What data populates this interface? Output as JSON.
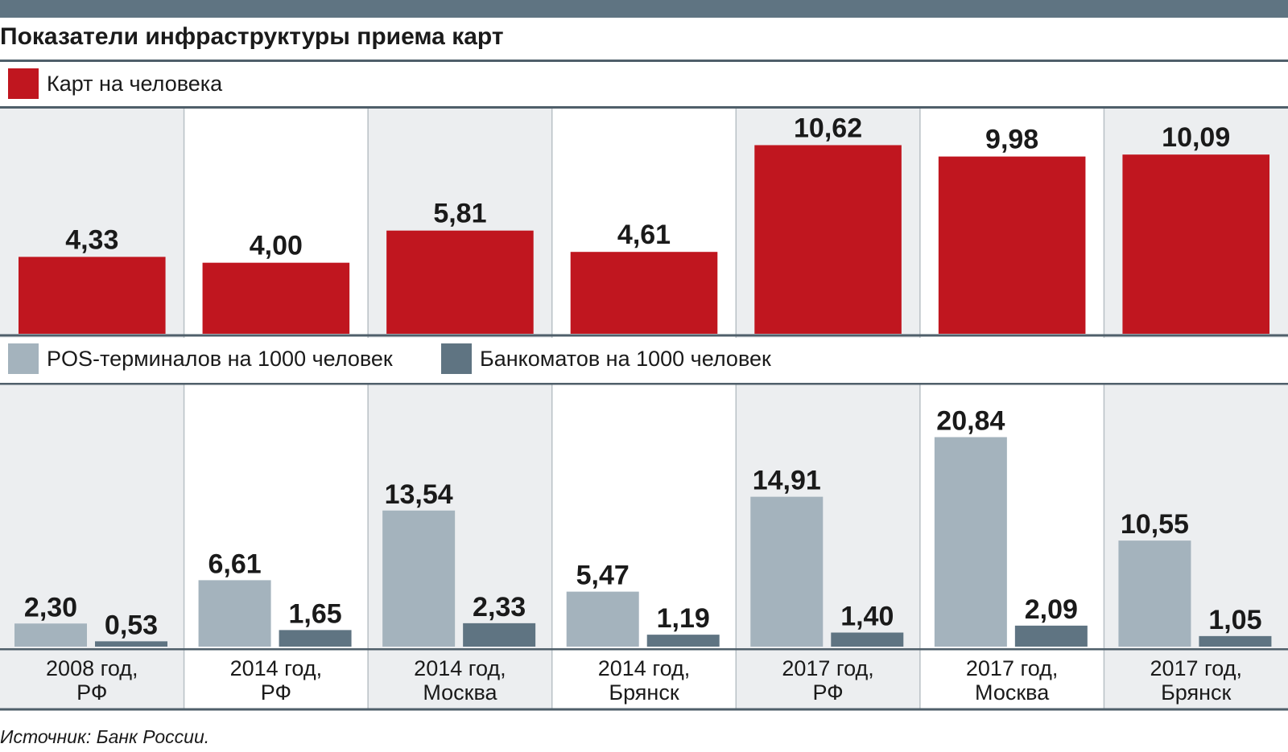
{
  "title": "Показатели инфраструктуры приема карт",
  "source": "Источник: Банк России.",
  "colors": {
    "topbar": "#5f7482",
    "cards": "#c0161f",
    "pos": "#a4b3bd",
    "atm": "#5f7482",
    "panel_shade": "#eceef0",
    "rule": "#4f5f6a",
    "grid": "#b8c0c6"
  },
  "legend_cards": {
    "label": "Карт на человека"
  },
  "legend_pos": {
    "label": "POS-терминалов на 1000 человек"
  },
  "legend_atm": {
    "label": "Банкоматов на 1000 человек"
  },
  "chart_data": [
    {
      "type": "bar",
      "categories": [
        "2008 год, РФ",
        "2014 год, РФ",
        "2014 год, Москва",
        "2014 год, Брянск",
        "2017 год, РФ",
        "2017 год, Москва",
        "2017 год, Брянск"
      ],
      "series": [
        {
          "name": "Карт на человека",
          "values": [
            4.33,
            4.0,
            5.81,
            4.61,
            10.62,
            9.98,
            10.09
          ],
          "labels": [
            "4,33",
            "4,00",
            "5,81",
            "4,61",
            "10,62",
            "9,98",
            "10,09"
          ]
        }
      ],
      "ylim": [
        0,
        12
      ]
    },
    {
      "type": "bar",
      "categories": [
        "2008 год, РФ",
        "2014 год, РФ",
        "2014 год, Москва",
        "2014 год, Брянск",
        "2017 год, РФ",
        "2017 год, Москва",
        "2017 год, Брянск"
      ],
      "series": [
        {
          "name": "POS-терминалов на 1000 человек",
          "values": [
            2.3,
            6.61,
            13.54,
            5.47,
            14.91,
            20.84,
            10.55
          ],
          "labels": [
            "2,30",
            "6,61",
            "13,54",
            "5,47",
            "14,91",
            "20,84",
            "10,55"
          ]
        },
        {
          "name": "Банкоматов на 1000 человек",
          "values": [
            0.53,
            1.65,
            2.33,
            1.19,
            1.4,
            2.09,
            1.05
          ],
          "labels": [
            "0,53",
            "1,65",
            "2,33",
            "1,19",
            "1,40",
            "2,09",
            "1,05"
          ]
        }
      ],
      "ylim": [
        0,
        24
      ]
    }
  ],
  "category_labels": [
    [
      "2008 год,",
      "РФ"
    ],
    [
      "2014 год,",
      "РФ"
    ],
    [
      "2014 год,",
      "Москва"
    ],
    [
      "2014 год,",
      "Брянск"
    ],
    [
      "2017 год,",
      "РФ"
    ],
    [
      "2017 год,",
      "Москва"
    ],
    [
      "2017 год,",
      "Брянск"
    ]
  ]
}
